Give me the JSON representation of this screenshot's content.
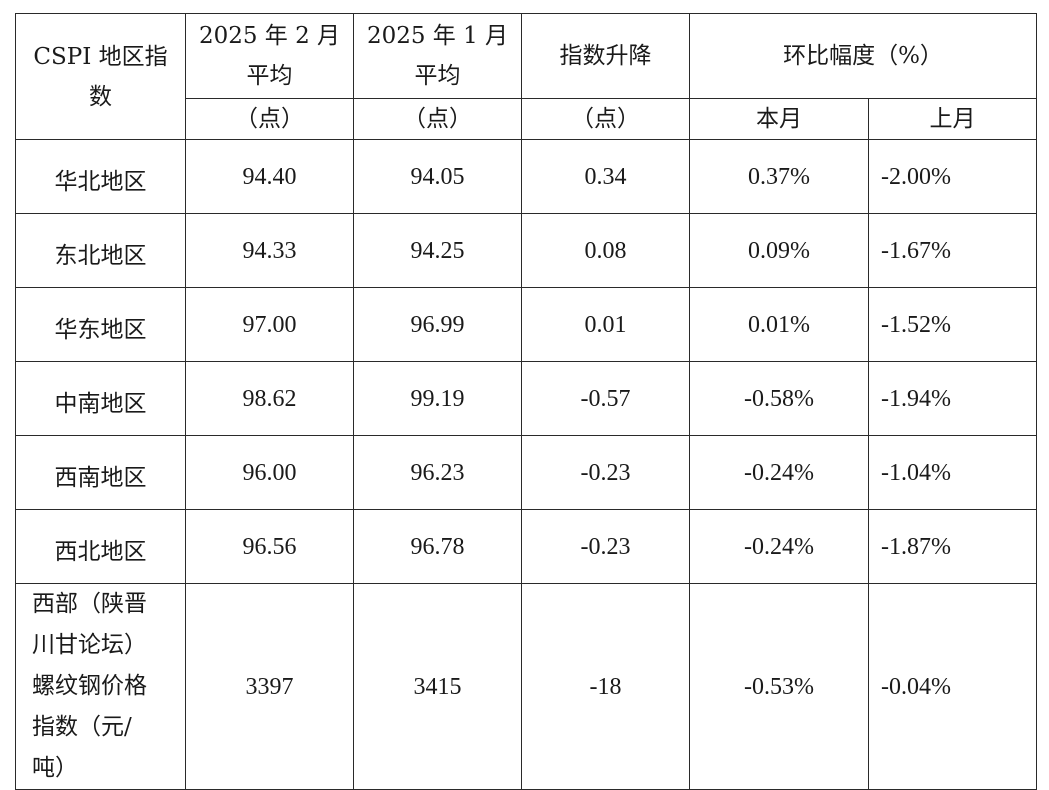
{
  "header": {
    "col1": "CSPI 地区指数",
    "col2_line1": "2025 年 2 月",
    "col2_line2": "平均",
    "col3_line1": "2025 年 1 月",
    "col3_line2": "平均",
    "col4": "指数升降",
    "col5": "环比幅度（%）",
    "unit_col2": "（点）",
    "unit_col3": "（点）",
    "unit_col4": "（点）",
    "this_month": "本月",
    "last_month": "上月"
  },
  "rows": [
    {
      "region": "华北地区",
      "feb": "94.40",
      "jan": "94.05",
      "change": "0.34",
      "mom_this": "0.37%",
      "mom_last": "-2.00%"
    },
    {
      "region": "东北地区",
      "feb": "94.33",
      "jan": "94.25",
      "change": "0.08",
      "mom_this": "0.09%",
      "mom_last": "-1.67%"
    },
    {
      "region": "华东地区",
      "feb": "97.00",
      "jan": "96.99",
      "change": "0.01",
      "mom_this": "0.01%",
      "mom_last": "-1.52%"
    },
    {
      "region": "中南地区",
      "feb": "98.62",
      "jan": "99.19",
      "change": "-0.57",
      "mom_this": "-0.58%",
      "mom_last": "-1.94%"
    },
    {
      "region": "西南地区",
      "feb": "96.00",
      "jan": "96.23",
      "change": "-0.23",
      "mom_this": "-0.24%",
      "mom_last": "-1.04%"
    },
    {
      "region": "西北地区",
      "feb": "96.56",
      "jan": "96.78",
      "change": "-0.23",
      "mom_this": "-0.24%",
      "mom_last": "-1.87%"
    }
  ],
  "west_row": {
    "label_lines": [
      "西部（陕晋",
      "川甘论坛）",
      "螺纹钢价格",
      "指数（元/",
      "吨）"
    ],
    "feb": "3397",
    "jan": "3415",
    "change": "-18",
    "mom_this": "-0.53%",
    "mom_last": "-0.04%"
  }
}
